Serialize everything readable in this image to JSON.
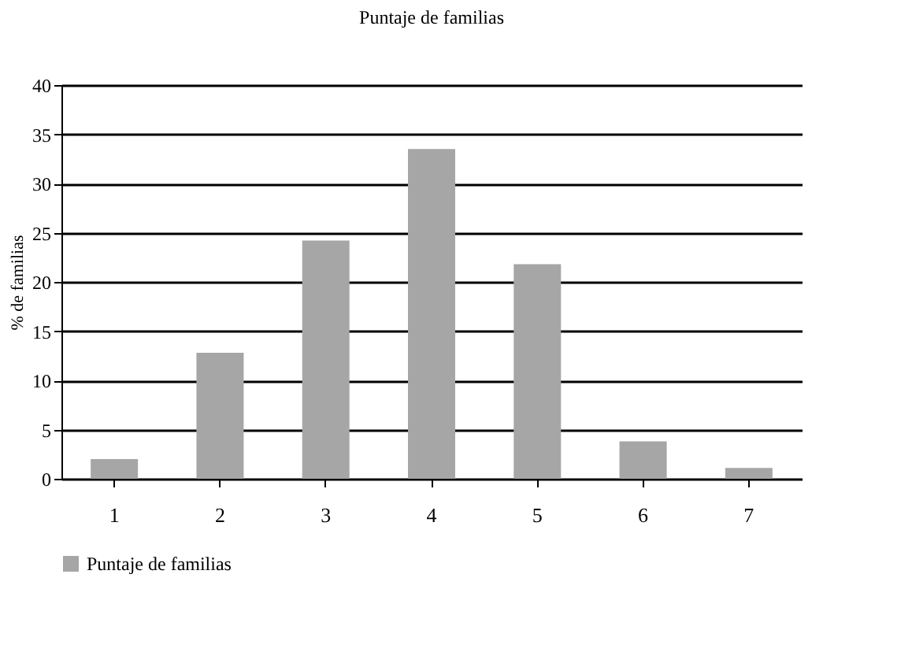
{
  "chart_data": {
    "type": "bar",
    "title": "Puntaje de familias",
    "ylabel": "% de familias",
    "categories": [
      "1",
      "2",
      "3",
      "4",
      "5",
      "6",
      "7"
    ],
    "series": [
      {
        "name": "Puntaje de familias",
        "color": "#a6a6a6",
        "values": [
          2.0,
          12.8,
          24.2,
          33.5,
          21.8,
          3.8,
          1.1
        ]
      }
    ],
    "ylim": [
      0,
      40
    ],
    "yticks": [
      0,
      5,
      10,
      15,
      20,
      25,
      30,
      35,
      40
    ],
    "grid": "y",
    "legend": "bottom"
  }
}
